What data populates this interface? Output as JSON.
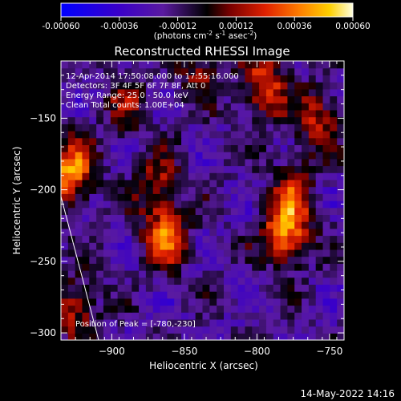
{
  "chart_data": {
    "type": "heatmap",
    "title": "Reconstructed RHESSI Image",
    "xlabel": "Heliocentric X (arcsec)",
    "ylabel": "Heliocentric Y (arcsec)",
    "xlim": [
      -935,
      -740
    ],
    "ylim": [
      -305,
      -110
    ],
    "x_ticks": [
      -900,
      -850,
      -800,
      -750
    ],
    "y_ticks": [
      -150,
      -200,
      -250,
      -300
    ],
    "colorbar": {
      "range": [
        -0.0006,
        0.0006
      ],
      "ticks": [
        "-0.00060",
        "-0.00036",
        "-0.00012",
        "0.00012",
        "0.00036",
        "0.00060"
      ],
      "unit_base": "(photons cm",
      "unit_sup1": "-2",
      "unit_mid": " s",
      "unit_sup2": "-1",
      "unit_mid2": " asec",
      "unit_sup3": "-2",
      "unit_end": ")"
    },
    "annotations": [
      "12-Apr-2014 17:50:08.000 to 17:55:16.000",
      "Detectors: 3F 4F 5F 6F 7F 8F, Att 0",
      "Energy Range: 25.0 - 50.0 keV",
      "Clean     Total counts: 1.00E+04"
    ],
    "peak_label": "Position of Peak = [-780,-230]",
    "peak_position": [
      -780,
      -230
    ],
    "sources": [
      {
        "x": -928,
        "y": -188,
        "intensity": 0.0006
      },
      {
        "x": -863,
        "y": -232,
        "intensity": 0.00048
      },
      {
        "x": -868,
        "y": -195,
        "intensity": 0.00032
      },
      {
        "x": -780,
        "y": -230,
        "intensity": 0.0006
      },
      {
        "x": -775,
        "y": -200,
        "intensity": 0.0003
      },
      {
        "x": -795,
        "y": -128,
        "intensity": 0.00045
      },
      {
        "x": -758,
        "y": -150,
        "intensity": 0.00035
      },
      {
        "x": -890,
        "y": -140,
        "intensity": 0.00025
      },
      {
        "x": -925,
        "y": -283,
        "intensity": 0.00035
      },
      {
        "x": -840,
        "y": -118,
        "intensity": 0.00025
      }
    ]
  },
  "footer": {
    "date": "14-May-2022 14:16"
  }
}
